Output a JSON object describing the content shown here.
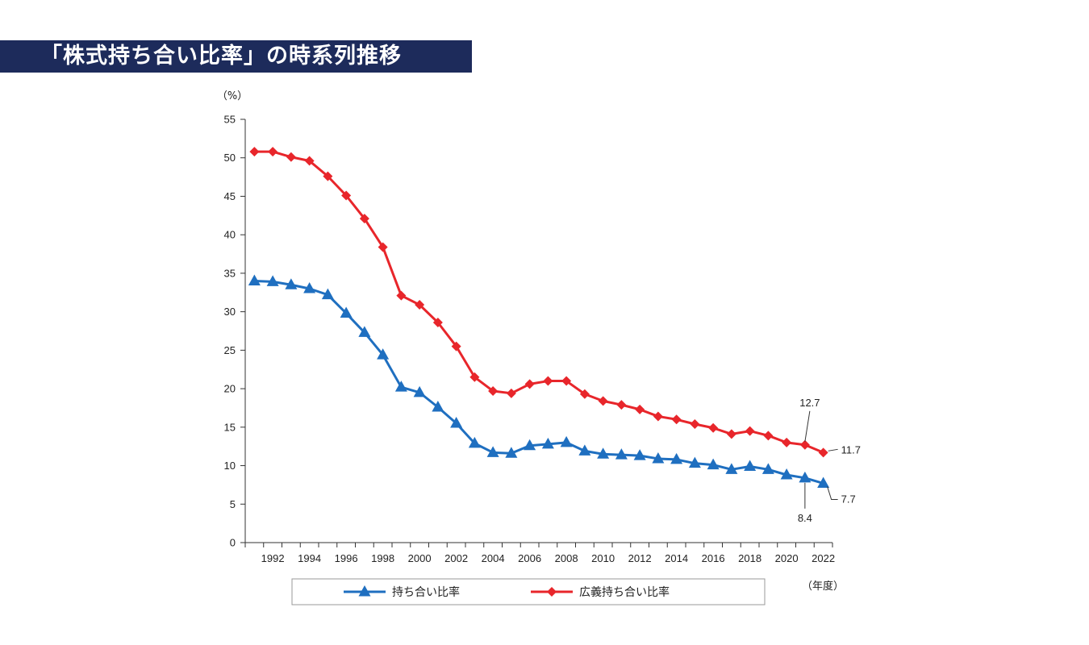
{
  "chart_data": {
    "type": "line",
    "title": "「株式持ち合い比率」の時系列推移",
    "ylabel": "（%）",
    "xlabel": "（年度）",
    "ylim": [
      0,
      55
    ],
    "yticks": [
      0,
      5,
      10,
      15,
      20,
      25,
      30,
      35,
      40,
      45,
      50,
      55
    ],
    "x": [
      1991,
      1992,
      1993,
      1994,
      1995,
      1996,
      1997,
      1998,
      1999,
      2000,
      2001,
      2002,
      2003,
      2004,
      2005,
      2006,
      2007,
      2008,
      2009,
      2010,
      2011,
      2012,
      2013,
      2014,
      2015,
      2016,
      2017,
      2018,
      2019,
      2020,
      2021,
      2022
    ],
    "xticks": [
      1992,
      1994,
      1996,
      1998,
      2000,
      2002,
      2004,
      2006,
      2008,
      2010,
      2012,
      2014,
      2016,
      2018,
      2020,
      2022
    ],
    "xlim": [
      1990.5,
      2022.5
    ],
    "series": [
      {
        "name": "持ち合い比率",
        "color": "#1f6fc0",
        "marker": "triangle",
        "values": [
          34.0,
          33.9,
          33.5,
          33.0,
          32.2,
          29.8,
          27.3,
          24.4,
          20.2,
          19.5,
          17.6,
          15.5,
          12.9,
          11.7,
          11.6,
          12.6,
          12.8,
          13.0,
          11.9,
          11.5,
          11.4,
          11.3,
          10.9,
          10.8,
          10.3,
          10.1,
          9.5,
          9.9,
          9.5,
          8.8,
          8.4,
          7.7
        ]
      },
      {
        "name": "広義持ち合い比率",
        "color": "#e8262b",
        "marker": "diamond",
        "values": [
          50.8,
          50.8,
          50.1,
          49.6,
          47.6,
          45.1,
          42.1,
          38.4,
          32.1,
          30.9,
          28.6,
          25.5,
          21.5,
          19.7,
          19.4,
          20.6,
          21.0,
          21.0,
          19.3,
          18.4,
          17.9,
          17.3,
          16.4,
          16.0,
          15.4,
          14.9,
          14.1,
          14.5,
          13.9,
          13.0,
          12.7,
          11.7
        ]
      }
    ],
    "annotations": [
      {
        "series": 1,
        "x": 2021,
        "text": "12.7",
        "placement": "above"
      },
      {
        "series": 1,
        "x": 2022,
        "text": "11.7",
        "placement": "right"
      },
      {
        "series": 0,
        "x": 2021,
        "text": "8.4",
        "placement": "below"
      },
      {
        "series": 0,
        "x": 2022,
        "text": "7.7",
        "placement": "right-below"
      }
    ],
    "legend": {
      "placement": "bottom",
      "entries": [
        "持ち合い比率",
        "広義持ち合い比率"
      ]
    }
  }
}
